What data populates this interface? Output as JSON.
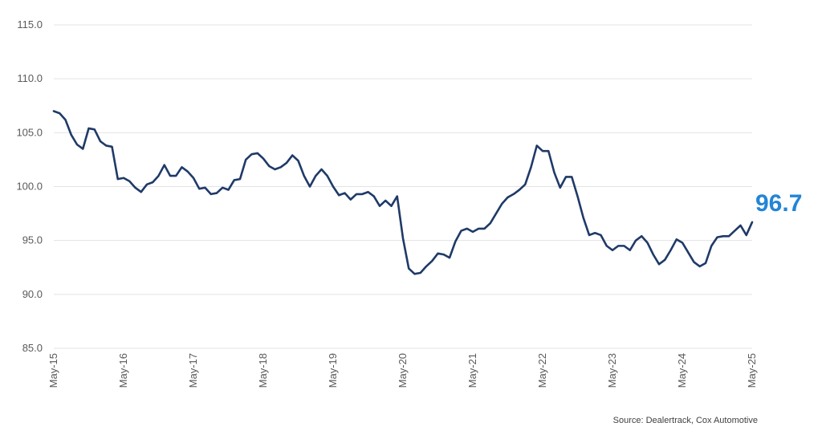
{
  "chart_data": {
    "type": "line",
    "title": "",
    "xlabel": "",
    "ylabel": "",
    "ylim": [
      85.0,
      115.0
    ],
    "y_ticks": [
      "85.0",
      "90.0",
      "95.0",
      "100.0",
      "105.0",
      "110.0",
      "115.0"
    ],
    "x_ticks": [
      "May-15",
      "May-16",
      "May-17",
      "May-18",
      "May-19",
      "May-20",
      "May-21",
      "May-22",
      "May-23",
      "May-24",
      "May-25"
    ],
    "grid": "horizontal",
    "series": [
      {
        "name": "",
        "color": "#1f3a68",
        "x_start": "May-15",
        "frequency": "monthly",
        "values": [
          107.0,
          106.8,
          106.2,
          104.8,
          103.9,
          103.5,
          105.4,
          105.3,
          104.2,
          103.8,
          103.7,
          100.7,
          100.8,
          100.5,
          99.9,
          99.5,
          100.2,
          100.4,
          101.0,
          102.0,
          101.0,
          101.0,
          101.8,
          101.4,
          100.8,
          99.8,
          99.9,
          99.3,
          99.4,
          99.9,
          99.7,
          100.6,
          100.7,
          102.5,
          103.0,
          103.1,
          102.6,
          101.9,
          101.6,
          101.8,
          102.2,
          102.9,
          102.4,
          101.0,
          100.0,
          101.0,
          101.6,
          101.0,
          100.0,
          99.2,
          99.4,
          98.8,
          99.3,
          99.3,
          99.5,
          99.1,
          98.2,
          98.7,
          98.2,
          99.1,
          95.2,
          92.4,
          91.9,
          92.0,
          92.6,
          93.1,
          93.8,
          93.7,
          93.4,
          94.9,
          95.9,
          96.1,
          95.8,
          96.1,
          96.1,
          96.6,
          97.5,
          98.4,
          99.0,
          99.3,
          99.7,
          100.2,
          101.8,
          103.8,
          103.3,
          103.3,
          101.3,
          99.9,
          100.9,
          100.9,
          99.1,
          97.1,
          95.5,
          95.7,
          95.5,
          94.5,
          94.1,
          94.5,
          94.5,
          94.1,
          95.0,
          95.4,
          94.8,
          93.7,
          92.8,
          93.2,
          94.1,
          95.1,
          94.8,
          93.9,
          93.0,
          92.6,
          92.9,
          94.5,
          95.3,
          95.4,
          95.4,
          95.9,
          96.4,
          95.5,
          96.7
        ]
      }
    ],
    "last_value_label": "96.7",
    "last_value_color": "#2385d6",
    "source": "Source: Dealertrack, Cox Automotive"
  }
}
